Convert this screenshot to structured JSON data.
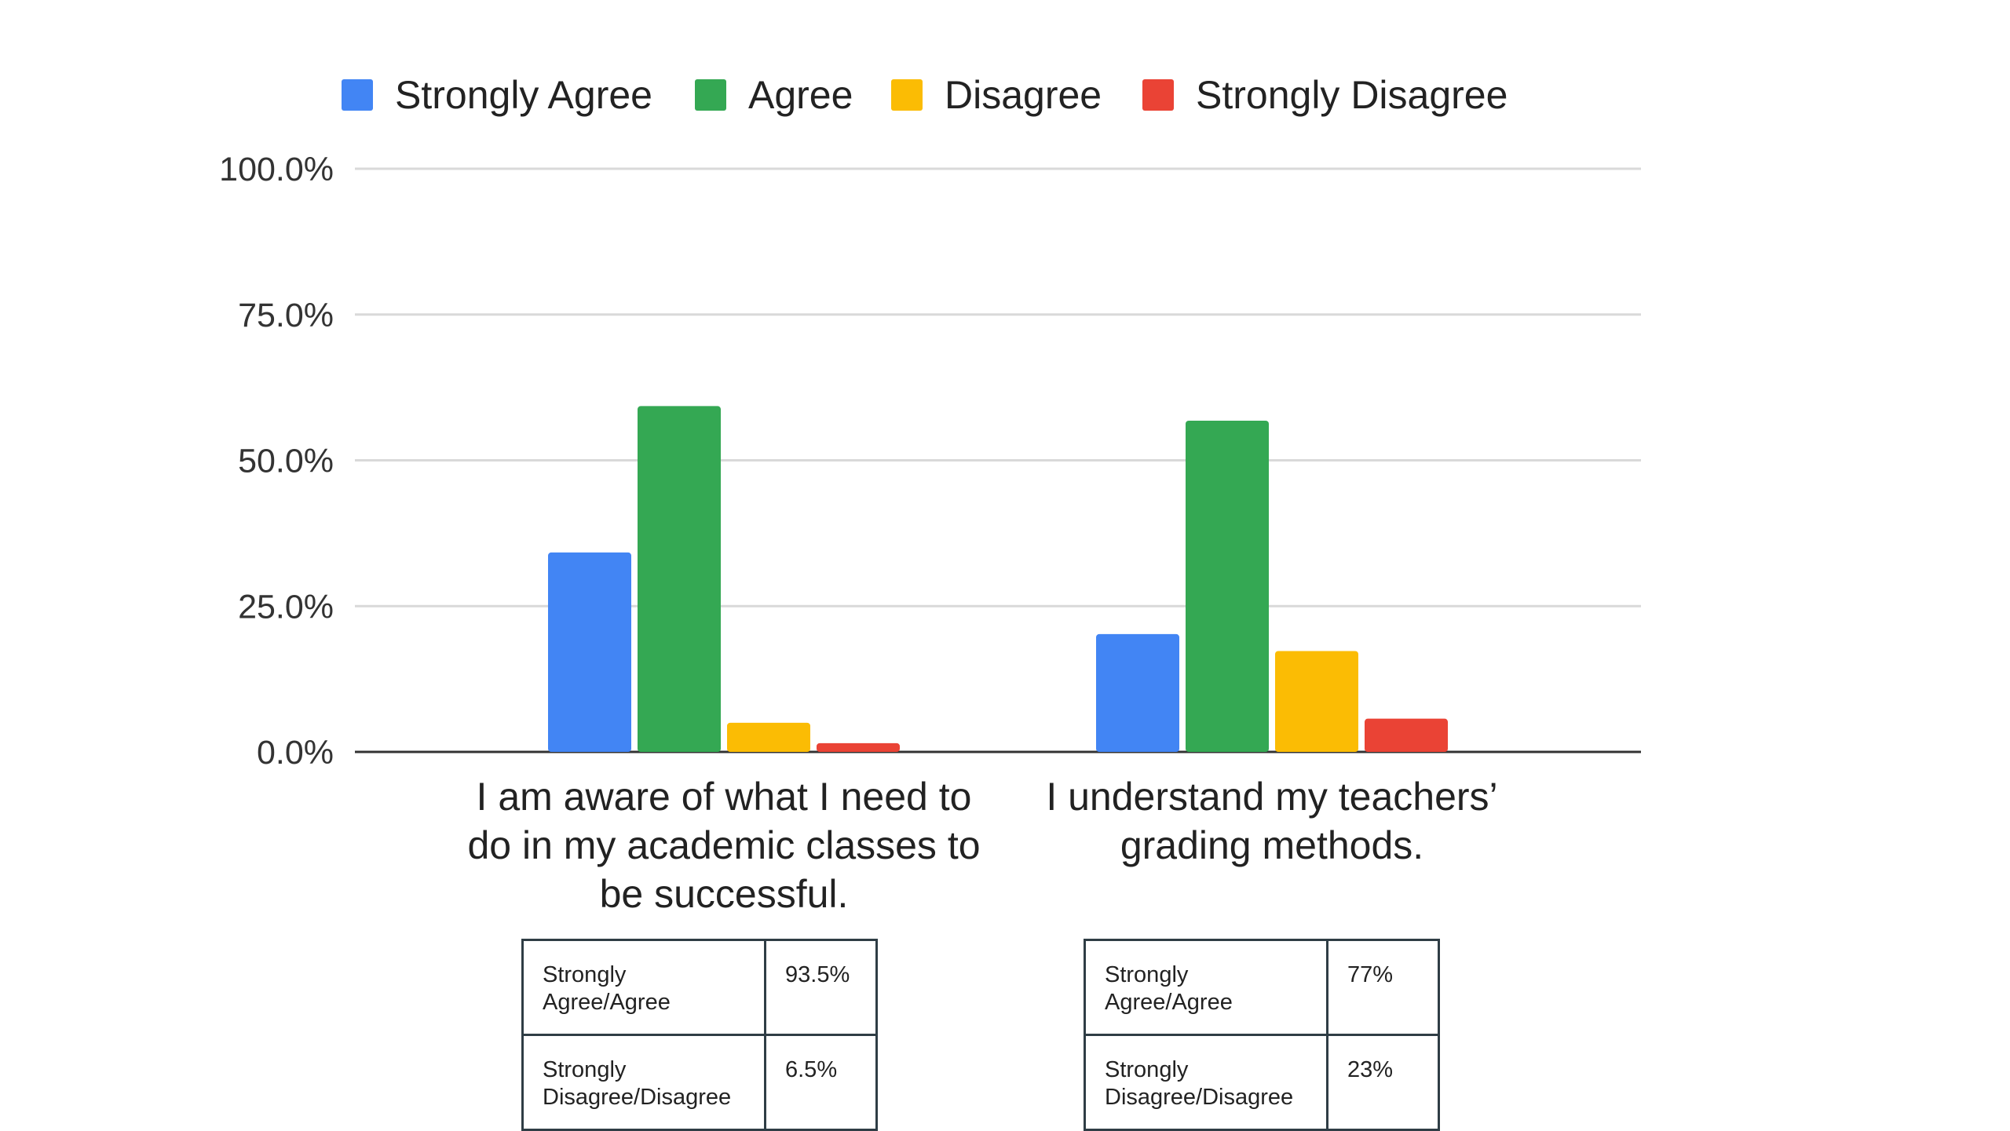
{
  "chart_data": {
    "type": "bar",
    "categories": [
      "I am aware of what I need to do in my academic classes to be successful.",
      "I understand my teachers’ grading methods."
    ],
    "category_label_lines": [
      [
        "I am aware of what I need to",
        "do in my academic classes to",
        "be successful."
      ],
      [
        "I understand my teachers’",
        "grading methods."
      ]
    ],
    "series": [
      {
        "name": "Strongly Agree",
        "color": "#4285f4",
        "values": [
          34.2,
          20.2
        ]
      },
      {
        "name": "Agree",
        "color": "#34a853",
        "values": [
          59.3,
          56.8
        ]
      },
      {
        "name": "Disagree",
        "color": "#fbbc04",
        "values": [
          5.0,
          17.3
        ]
      },
      {
        "name": "Strongly Disagree",
        "color": "#ea4335",
        "values": [
          1.5,
          5.7
        ]
      }
    ],
    "yticks": [
      "0.0%",
      "25.0%",
      "50.0%",
      "75.0%",
      "100.0%"
    ],
    "ylim": [
      0,
      100
    ],
    "title": "",
    "xlabel": "",
    "ylabel": "",
    "grid": true,
    "legend_position": "top"
  },
  "tables": [
    {
      "rows": [
        {
          "label": "Strongly Agree/Agree",
          "value": "93.5%"
        },
        {
          "label": "Strongly Disagree/Disagree",
          "value": "6.5%"
        }
      ]
    },
    {
      "rows": [
        {
          "label": "Strongly Agree/Agree",
          "value": "77%"
        },
        {
          "label": "Strongly Disagree/Disagree",
          "value": "23%"
        }
      ]
    }
  ]
}
